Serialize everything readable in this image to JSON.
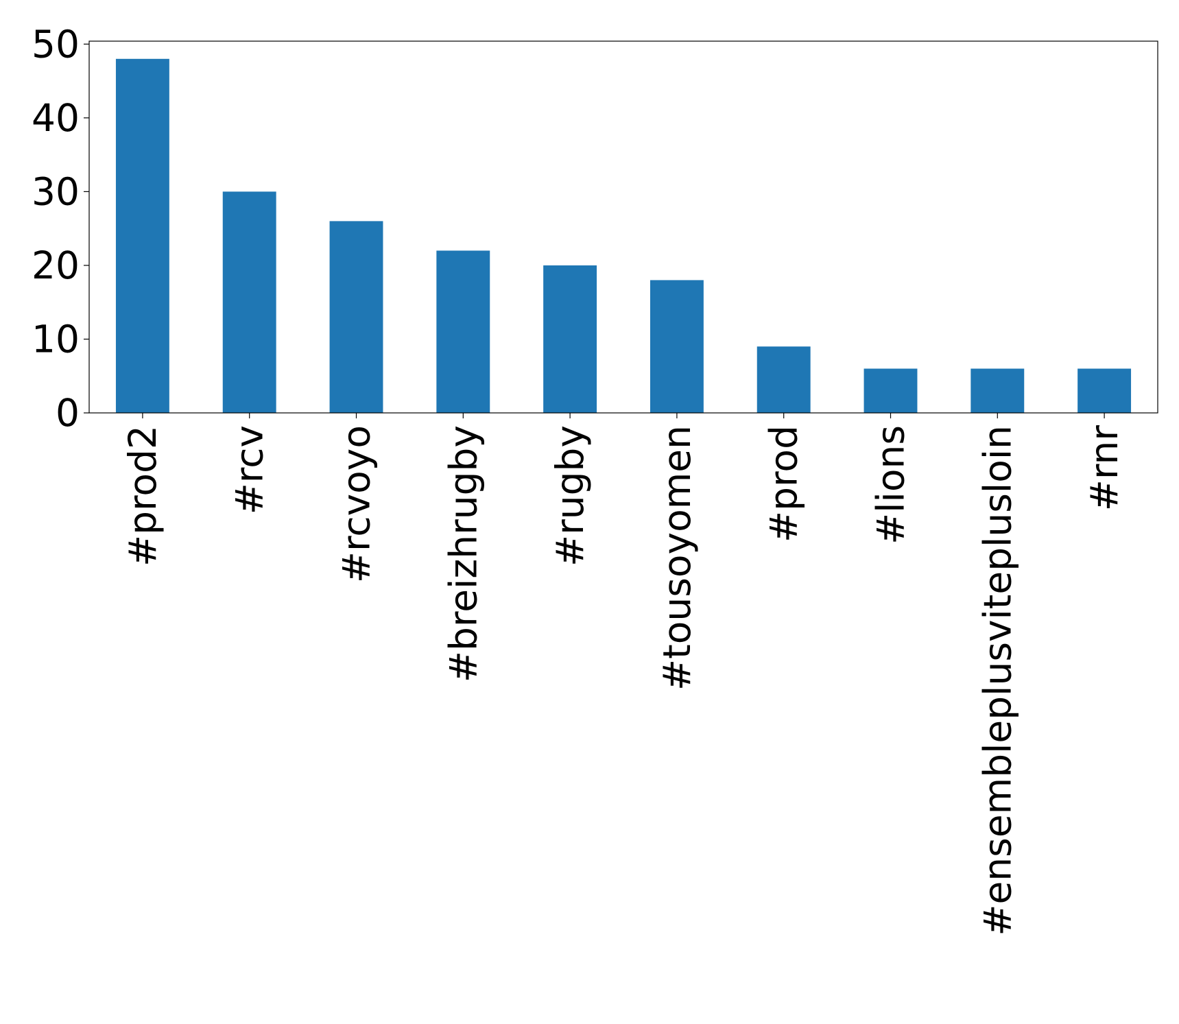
{
  "chart_data": {
    "type": "bar",
    "categories": [
      "#prod2",
      "#rcv",
      "#rcvoyo",
      "#breizhrugby",
      "#rugby",
      "#tousoyomen",
      "#prod",
      "#lions",
      "#ensembleplusviteplusloin",
      "#rnr"
    ],
    "values": [
      48,
      30,
      26,
      22,
      20,
      18,
      9,
      6,
      6,
      6
    ],
    "color": "#1f77b4",
    "ylim": [
      0,
      50.4
    ],
    "yticks": [
      0,
      10,
      20,
      30,
      40,
      50
    ],
    "grid": false
  }
}
